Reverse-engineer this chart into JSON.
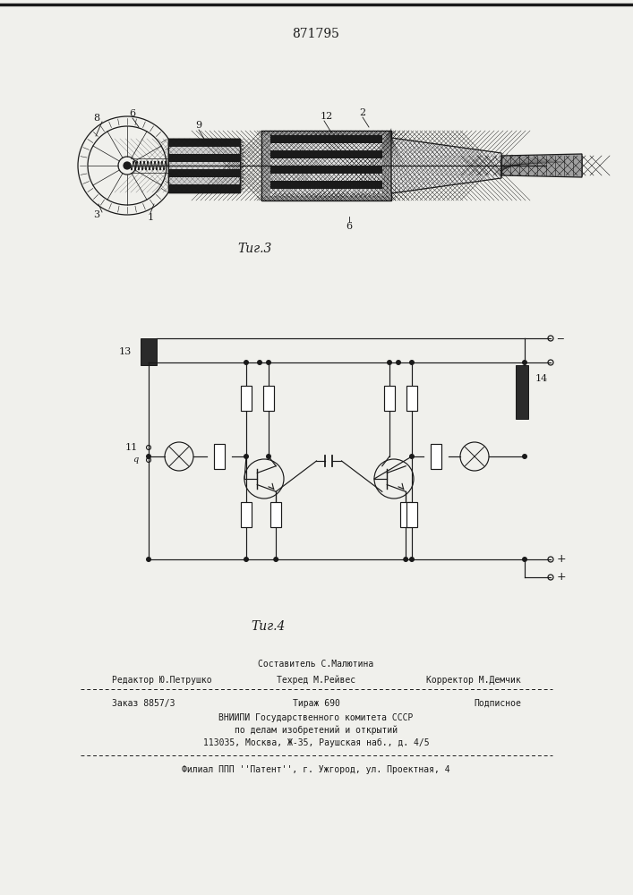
{
  "patent_number": "871795",
  "fig3_caption": "Τиг.3",
  "fig4_caption": "Τиг.4",
  "bg_color": "#f0f0ec",
  "line_color": "#1a1a1a",
  "label_color": "#111111"
}
